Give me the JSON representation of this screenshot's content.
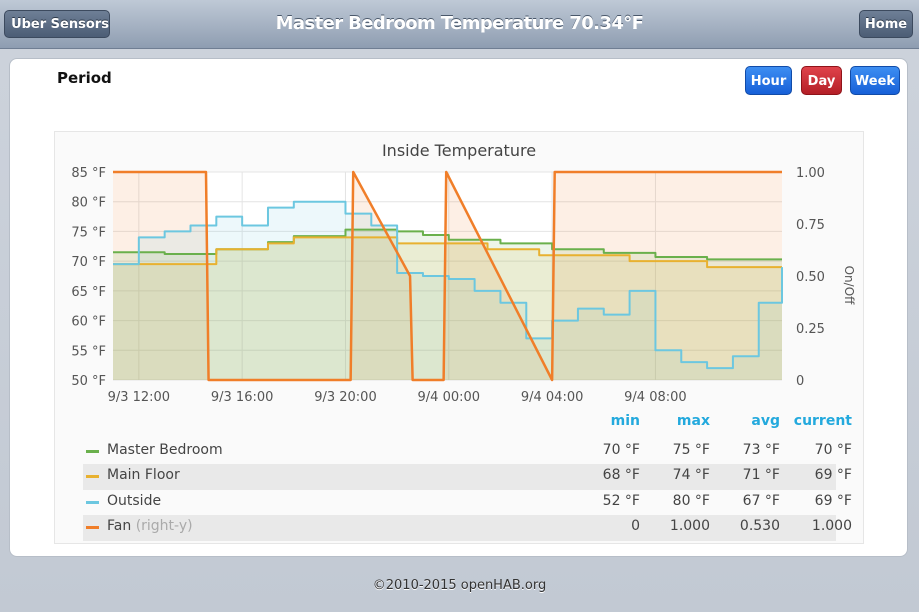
{
  "header": {
    "back_label": "Uber Sensors",
    "title": "Master Bedroom Temperature 70.34°F",
    "home_label": "Home"
  },
  "period": {
    "label": "Period",
    "buttons": [
      {
        "label": "Hour",
        "color": "#1f6fe0"
      },
      {
        "label": "Day",
        "color": "#c82a32",
        "active": true
      },
      {
        "label": "Week",
        "color": "#1f6fe0"
      }
    ]
  },
  "chart_data": {
    "type": "line",
    "title": "Inside Temperature",
    "ylabel_right": "On/Off",
    "x_tick_labels": [
      "9/3 12:00",
      "9/3 16:00",
      "9/3 20:00",
      "9/4 00:00",
      "9/4 04:00",
      "9/4 08:00"
    ],
    "x_range_hours": [
      -1,
      24.9
    ],
    "yaxis_left": {
      "range": [
        50,
        85
      ],
      "ticks": [
        "50 °F",
        "55 °F",
        "60 °F",
        "65 °F",
        "70 °F",
        "75 °F",
        "80 °F",
        "85 °F"
      ]
    },
    "yaxis_right": {
      "range": [
        0,
        1
      ],
      "ticks": [
        "0",
        "0.25",
        "0.50",
        "0.75",
        "1.00"
      ]
    },
    "grid": true,
    "series": [
      {
        "name": "Master Bedroom",
        "color": "#6ab04c",
        "axis": "left",
        "x": [
          -1,
          1,
          3,
          5,
          6,
          8,
          10,
          11,
          12,
          14,
          16,
          18,
          20,
          22,
          24.9
        ],
        "y": [
          71.5,
          71.2,
          72,
          73.2,
          74.2,
          75.3,
          75.0,
          74.4,
          73.6,
          73.0,
          72.0,
          71.4,
          70.7,
          70.3,
          70.3
        ]
      },
      {
        "name": "Main Floor",
        "color": "#e8b130",
        "axis": "left",
        "x": [
          -1,
          1,
          2.5,
          3,
          5,
          6,
          8,
          9.5,
          10,
          11,
          12,
          13.5,
          14,
          15.5,
          16,
          18.5,
          19,
          21.5,
          22,
          24,
          24.9
        ],
        "y": [
          69.5,
          69.5,
          69.5,
          72,
          73,
          74,
          74,
          74,
          73,
          73,
          73,
          72,
          72,
          71,
          71,
          71,
          70,
          70,
          69,
          69,
          69
        ]
      },
      {
        "name": "Outside",
        "color": "#6cc7e0",
        "axis": "left",
        "x": [
          -1,
          0,
          1,
          2,
          3,
          4,
          5,
          6,
          7,
          8,
          9,
          10,
          11,
          12,
          13,
          14,
          15,
          16,
          17,
          18,
          19,
          20,
          21,
          22,
          23,
          24,
          24.9
        ],
        "y": [
          69.5,
          74,
          75,
          76,
          77.5,
          76,
          79,
          80,
          80,
          78,
          76,
          68,
          67.5,
          67,
          65,
          63,
          57,
          60,
          62,
          61,
          65,
          55,
          53,
          52,
          54,
          63,
          69
        ]
      },
      {
        "name": "Fan",
        "suffix": "(right-y)",
        "color": "#f07e29",
        "axis": "right",
        "x": [
          -1,
          2.6,
          2.7,
          8.2,
          8.3,
          10.5,
          10.6,
          11.8,
          11.9,
          16.0,
          16.1,
          24.9
        ],
        "y": [
          1,
          1,
          0,
          0,
          1,
          0.5,
          0,
          0,
          1,
          0,
          1,
          1
        ]
      }
    ]
  },
  "legend": {
    "headers": {
      "min": "min",
      "max": "max",
      "avg": "avg",
      "current": "current"
    },
    "rows": [
      {
        "name": "Master Bedroom",
        "suffix": "",
        "color": "#6ab04c",
        "min": "70 °F",
        "max": "75 °F",
        "avg": "73 °F",
        "current": "70 °F"
      },
      {
        "name": "Main Floor",
        "suffix": "",
        "color": "#e8b130",
        "min": "68 °F",
        "max": "74 °F",
        "avg": "71 °F",
        "current": "69 °F"
      },
      {
        "name": "Outside",
        "suffix": "",
        "color": "#6cc7e0",
        "min": "52 °F",
        "max": "80 °F",
        "avg": "67 °F",
        "current": "69 °F"
      },
      {
        "name": "Fan",
        "suffix": "(right-y)",
        "color": "#f07e29",
        "min": "0",
        "max": "1.000",
        "avg": "0.530",
        "current": "1.000"
      }
    ]
  },
  "footer": {
    "text": "©2010-2015 openHAB.org"
  }
}
